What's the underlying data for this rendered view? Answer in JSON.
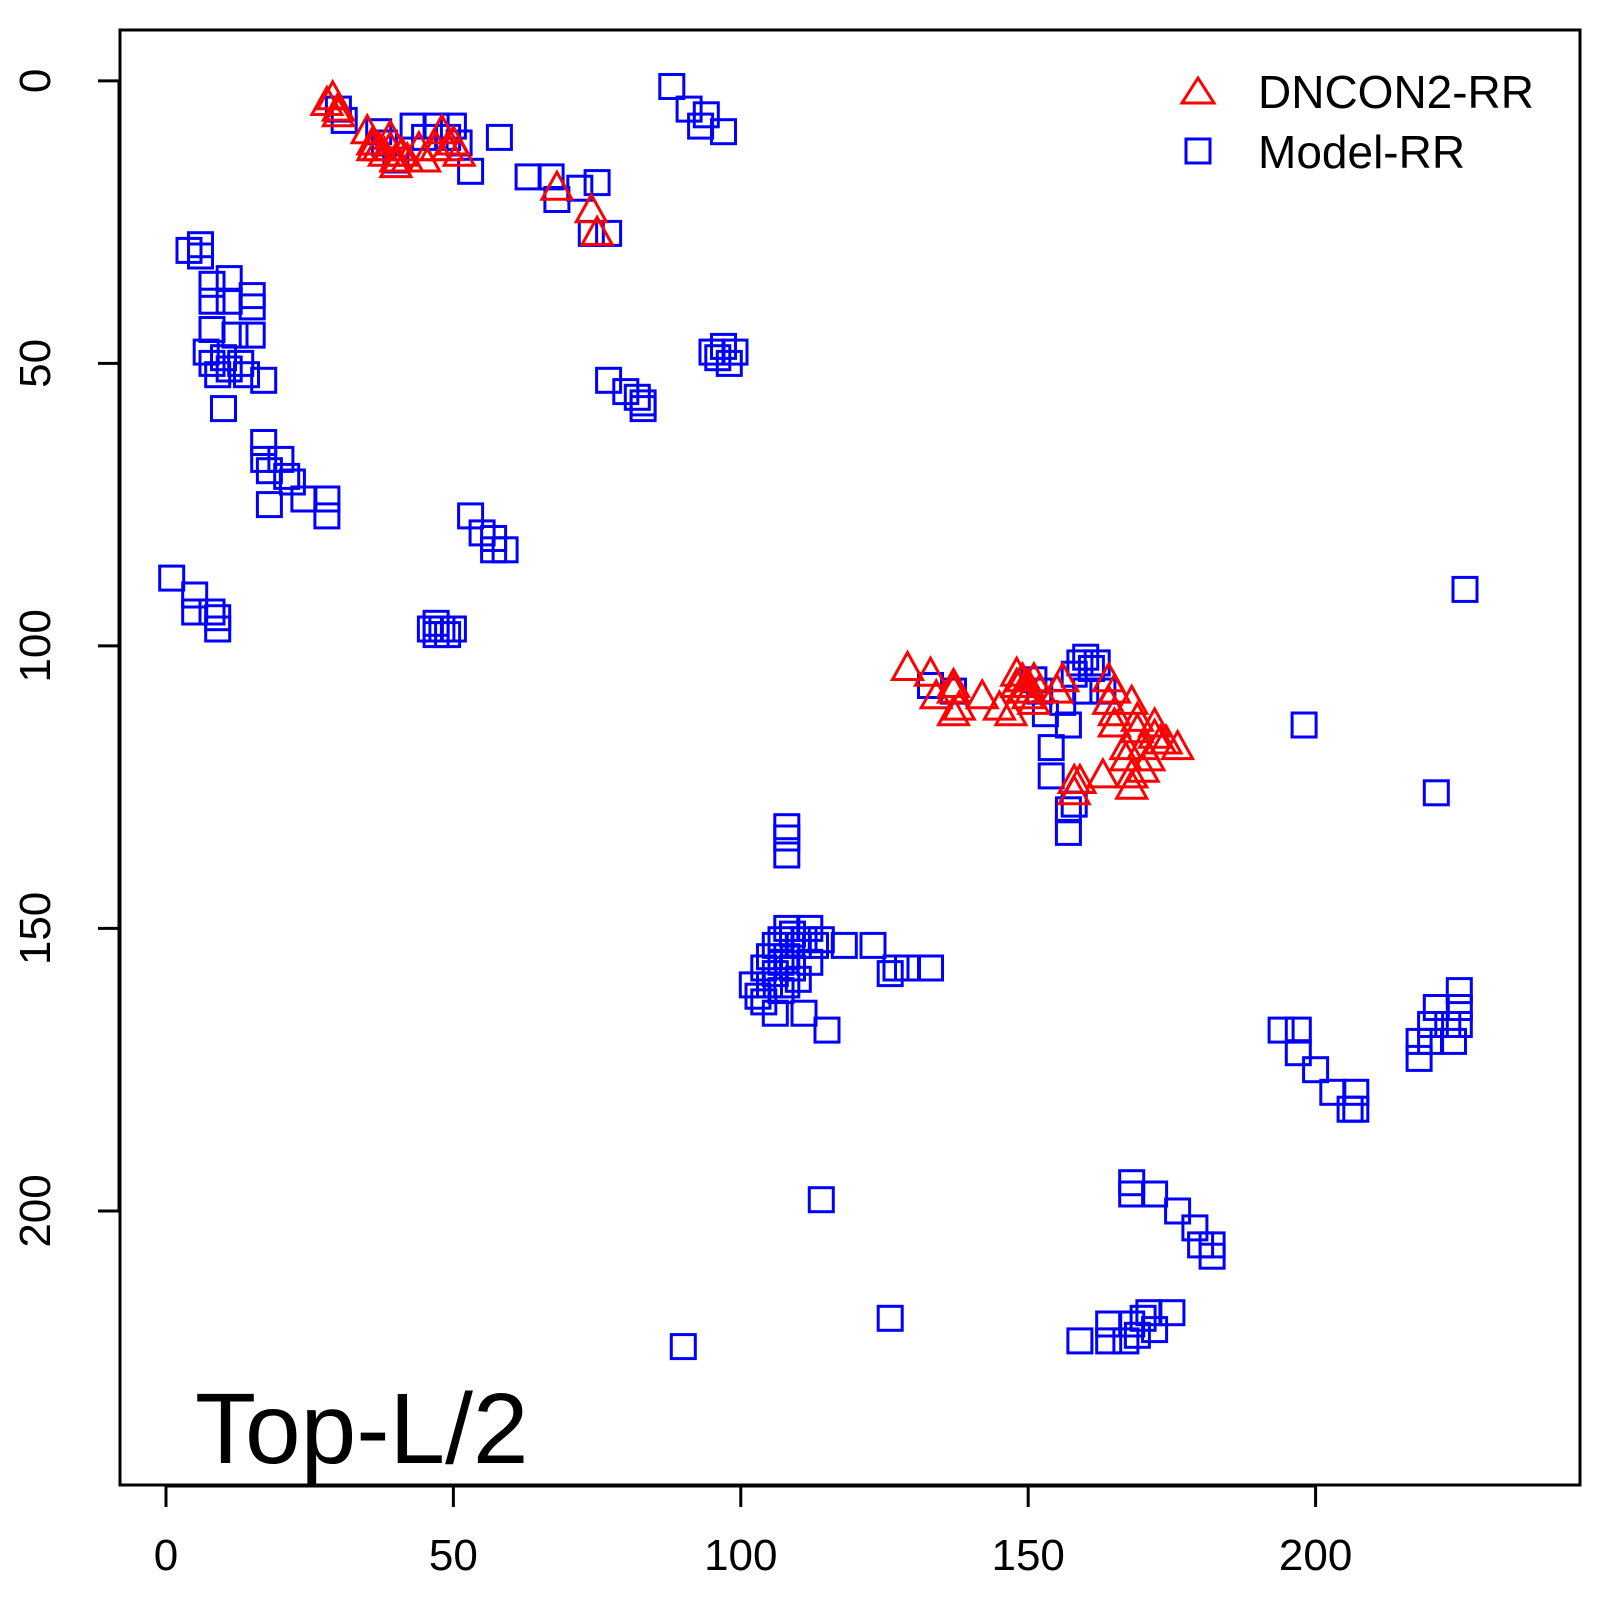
{
  "chart_data": {
    "type": "scatter",
    "title": "",
    "xlabel": "",
    "ylabel": "",
    "xlim": [
      -8,
      246
    ],
    "ylim": [
      248.5,
      -9
    ],
    "y_axis_inverted": true,
    "grid": false,
    "legend_position": "top-right",
    "x_ticks": [
      0,
      50,
      100,
      150,
      200
    ],
    "y_ticks": [
      0,
      50,
      100,
      150,
      200
    ],
    "x_tick_labels": [
      "0",
      "50",
      "100",
      "150",
      "200"
    ],
    "y_tick_labels": [
      "0",
      "50",
      "100",
      "150",
      "200"
    ],
    "annotation": "Top-L/2",
    "colors": {
      "dncon2": "#ff0000",
      "model": "#0000ff",
      "axis": "#000000"
    },
    "series": [
      {
        "name": "DNCON2-RR",
        "marker": "triangle",
        "color": "#ff0000",
        "points": [
          [
            28,
            4
          ],
          [
            29,
            3
          ],
          [
            30,
            5
          ],
          [
            30,
            6
          ],
          [
            35,
            9
          ],
          [
            36,
            11
          ],
          [
            36,
            12
          ],
          [
            37,
            12
          ],
          [
            38,
            13
          ],
          [
            39,
            10
          ],
          [
            39,
            12
          ],
          [
            40,
            14
          ],
          [
            40,
            15
          ],
          [
            41,
            13
          ],
          [
            42,
            14
          ],
          [
            44,
            12
          ],
          [
            45,
            14
          ],
          [
            47,
            12
          ],
          [
            48,
            9
          ],
          [
            49,
            12
          ],
          [
            50,
            11
          ],
          [
            51,
            13
          ],
          [
            68,
            19
          ],
          [
            74,
            23
          ],
          [
            75,
            27
          ],
          [
            129,
            104
          ],
          [
            133,
            105
          ],
          [
            134,
            109
          ],
          [
            137,
            107
          ],
          [
            137,
            108
          ],
          [
            137,
            112
          ],
          [
            138,
            111
          ],
          [
            142,
            109
          ],
          [
            145,
            111
          ],
          [
            147,
            112
          ],
          [
            148,
            105
          ],
          [
            148,
            107
          ],
          [
            149,
            106
          ],
          [
            149,
            108
          ],
          [
            150,
            107
          ],
          [
            150,
            109
          ],
          [
            151,
            106
          ],
          [
            151,
            110
          ],
          [
            152,
            108
          ],
          [
            155,
            108
          ],
          [
            156,
            106
          ],
          [
            158,
            124
          ],
          [
            158,
            126
          ],
          [
            159,
            124
          ],
          [
            163,
            123
          ],
          [
            164,
            106
          ],
          [
            164,
            110
          ],
          [
            165,
            108
          ],
          [
            165,
            112
          ],
          [
            165,
            114
          ],
          [
            167,
            118
          ],
          [
            167,
            120
          ],
          [
            168,
            110
          ],
          [
            168,
            123
          ],
          [
            168,
            125
          ],
          [
            169,
            113
          ],
          [
            169,
            115
          ],
          [
            170,
            118
          ],
          [
            170,
            122
          ],
          [
            171,
            120
          ],
          [
            172,
            114
          ],
          [
            172,
            116
          ],
          [
            173,
            117
          ],
          [
            174,
            117
          ],
          [
            176,
            118
          ]
        ]
      },
      {
        "name": "Model-RR",
        "marker": "square",
        "color": "#0000ff",
        "points": [
          [
            30,
            5
          ],
          [
            31,
            7
          ],
          [
            37,
            9
          ],
          [
            38,
            11
          ],
          [
            40,
            14
          ],
          [
            43,
            8
          ],
          [
            45,
            10
          ],
          [
            47,
            8
          ],
          [
            49,
            10
          ],
          [
            50,
            8
          ],
          [
            51,
            11
          ],
          [
            53,
            16
          ],
          [
            58,
            10
          ],
          [
            63,
            17
          ],
          [
            67,
            17
          ],
          [
            68,
            21
          ],
          [
            72,
            19
          ],
          [
            75,
            18
          ],
          [
            74,
            27
          ],
          [
            77,
            27
          ],
          [
            88,
            1
          ],
          [
            91,
            5
          ],
          [
            93,
            8
          ],
          [
            94,
            6
          ],
          [
            97,
            9
          ],
          [
            4,
            30
          ],
          [
            6,
            29
          ],
          [
            6,
            31
          ],
          [
            8,
            36
          ],
          [
            8,
            39
          ],
          [
            11,
            35
          ],
          [
            11,
            39
          ],
          [
            15,
            38
          ],
          [
            15,
            40
          ],
          [
            15,
            45
          ],
          [
            8,
            44
          ],
          [
            12,
            45
          ],
          [
            7,
            48
          ],
          [
            8,
            50
          ],
          [
            10,
            49
          ],
          [
            11,
            51
          ],
          [
            13,
            50
          ],
          [
            14,
            52
          ],
          [
            9,
            52
          ],
          [
            17,
            53
          ],
          [
            10,
            58
          ],
          [
            17,
            64
          ],
          [
            17,
            67
          ],
          [
            18,
            69
          ],
          [
            20,
            67
          ],
          [
            21,
            70
          ],
          [
            22,
            71
          ],
          [
            18,
            75
          ],
          [
            24,
            74
          ],
          [
            28,
            74
          ],
          [
            28,
            77
          ],
          [
            1,
            88
          ],
          [
            5,
            91
          ],
          [
            5,
            94
          ],
          [
            8,
            94
          ],
          [
            9,
            95
          ],
          [
            9,
            97
          ],
          [
            53,
            77
          ],
          [
            55,
            80
          ],
          [
            57,
            81
          ],
          [
            57,
            83
          ],
          [
            59,
            83
          ],
          [
            46,
            97
          ],
          [
            47,
            96
          ],
          [
            47,
            98
          ],
          [
            48,
            97
          ],
          [
            49,
            98
          ],
          [
            50,
            97
          ],
          [
            77,
            53
          ],
          [
            80,
            55
          ],
          [
            82,
            56
          ],
          [
            83,
            57
          ],
          [
            83,
            58
          ],
          [
            95,
            48
          ],
          [
            96,
            49
          ],
          [
            97,
            47
          ],
          [
            98,
            50
          ],
          [
            99,
            48
          ],
          [
            133,
            107
          ],
          [
            137,
            108
          ],
          [
            151,
            106
          ],
          [
            152,
            108
          ],
          [
            153,
            112
          ],
          [
            154,
            118
          ],
          [
            154,
            123
          ],
          [
            156,
            110
          ],
          [
            157,
            129
          ],
          [
            157,
            133
          ],
          [
            158,
            105
          ],
          [
            158,
            128
          ],
          [
            159,
            103
          ],
          [
            160,
            102
          ],
          [
            161,
            104
          ],
          [
            162,
            103
          ],
          [
            163,
            108
          ],
          [
            160,
            108
          ],
          [
            157,
            114
          ],
          [
            108,
            132
          ],
          [
            108,
            134
          ],
          [
            108,
            137
          ],
          [
            102,
            160
          ],
          [
            103,
            162
          ],
          [
            104,
            157
          ],
          [
            104,
            163
          ],
          [
            105,
            155
          ],
          [
            105,
            160
          ],
          [
            106,
            153
          ],
          [
            106,
            158
          ],
          [
            106,
            165
          ],
          [
            107,
            152
          ],
          [
            107,
            156
          ],
          [
            107,
            161
          ],
          [
            108,
            150
          ],
          [
            108,
            155
          ],
          [
            108,
            160
          ],
          [
            109,
            151
          ],
          [
            109,
            157
          ],
          [
            110,
            153
          ],
          [
            110,
            159
          ],
          [
            111,
            152
          ],
          [
            111,
            165
          ],
          [
            112,
            150
          ],
          [
            112,
            156
          ],
          [
            113,
            153
          ],
          [
            114,
            152
          ],
          [
            115,
            168
          ],
          [
            118,
            153
          ],
          [
            123,
            153
          ],
          [
            126,
            158
          ],
          [
            127,
            157
          ],
          [
            129,
            157
          ],
          [
            133,
            157
          ],
          [
            114,
            198
          ],
          [
            126,
            219
          ],
          [
            90,
            224
          ],
          [
            198,
            114
          ],
          [
            221,
            126
          ],
          [
            226,
            90
          ],
          [
            194,
            168
          ],
          [
            197,
            168
          ],
          [
            197,
            172
          ],
          [
            200,
            175
          ],
          [
            203,
            179
          ],
          [
            206,
            182
          ],
          [
            207,
            179
          ],
          [
            207,
            182
          ],
          [
            218,
            170
          ],
          [
            218,
            173
          ],
          [
            220,
            167
          ],
          [
            220,
            170
          ],
          [
            221,
            164
          ],
          [
            223,
            167
          ],
          [
            224,
            170
          ],
          [
            225,
            161
          ],
          [
            225,
            164
          ],
          [
            225,
            167
          ],
          [
            168,
            195
          ],
          [
            168,
            197
          ],
          [
            172,
            197
          ],
          [
            176,
            200
          ],
          [
            179,
            203
          ],
          [
            180,
            206
          ],
          [
            182,
            206
          ],
          [
            182,
            208
          ],
          [
            159,
            223
          ],
          [
            164,
            220
          ],
          [
            164,
            223
          ],
          [
            167,
            223
          ],
          [
            168,
            220
          ],
          [
            169,
            222
          ],
          [
            170,
            219
          ],
          [
            171,
            218
          ],
          [
            172,
            221
          ],
          [
            175,
            218
          ]
        ]
      }
    ]
  }
}
